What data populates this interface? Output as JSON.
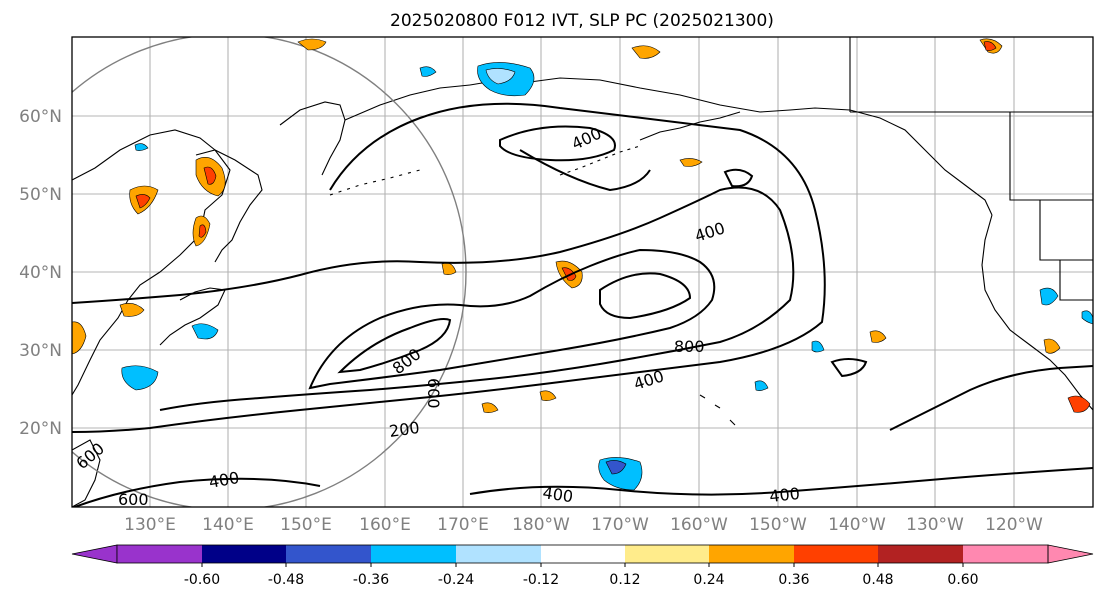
{
  "title": "2025020800 F012 IVT, SLP PC (2025021300)",
  "map": {
    "lat_labels": [
      "60°N",
      "50°N",
      "40°N",
      "30°N",
      "20°N"
    ],
    "lon_labels": [
      "130°E",
      "140°E",
      "150°E",
      "160°E",
      "170°E",
      "180°W",
      "170°W",
      "160°W",
      "150°W",
      "140°W",
      "130°W",
      "120°W"
    ],
    "ivt_contour_labels": [
      "400",
      "400",
      "800",
      "800",
      "600",
      "400",
      "200",
      "400",
      "400",
      "400",
      "600",
      "600"
    ]
  },
  "colorbar": {
    "colors": [
      "#9933cc",
      "#000088",
      "#3355cc",
      "#00bfff",
      "#b0e2ff",
      "#ffffff",
      "#ffec8b",
      "#ffa500",
      "#ff4000",
      "#b22222",
      "#ff88b0"
    ],
    "labels": [
      "-0.60",
      "-0.48",
      "-0.36",
      "-0.24",
      "-0.12",
      "0.12",
      "0.24",
      "0.36",
      "0.48",
      "0.60"
    ]
  }
}
